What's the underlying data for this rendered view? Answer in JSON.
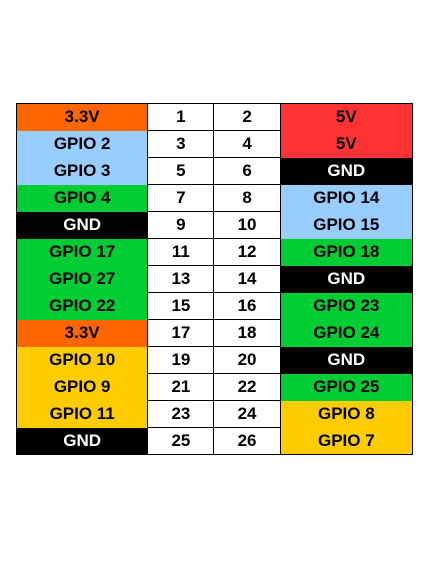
{
  "colors": {
    "orange": "#ff6600",
    "light_blue": "#99ccff",
    "green": "#00cc33",
    "black": "#000000",
    "red": "#ff3333",
    "yellow": "#ffcc00",
    "white": "#ffffff"
  },
  "rows": [
    {
      "left": {
        "label": "3.3V",
        "color": "orange",
        "text": "black"
      },
      "odd": "1",
      "even": "2",
      "right": {
        "label": "5V",
        "color": "red",
        "text": "black"
      }
    },
    {
      "left": {
        "label": "GPIO 2",
        "color": "light_blue",
        "text": "black"
      },
      "odd": "3",
      "even": "4",
      "right": {
        "label": "5V",
        "color": "red",
        "text": "black"
      }
    },
    {
      "left": {
        "label": "GPIO 3",
        "color": "light_blue",
        "text": "black"
      },
      "odd": "5",
      "even": "6",
      "right": {
        "label": "GND",
        "color": "black",
        "text": "white"
      }
    },
    {
      "left": {
        "label": "GPIO 4",
        "color": "green",
        "text": "black"
      },
      "odd": "7",
      "even": "8",
      "right": {
        "label": "GPIO 14",
        "color": "light_blue",
        "text": "black"
      }
    },
    {
      "left": {
        "label": "GND",
        "color": "black",
        "text": "white"
      },
      "odd": "9",
      "even": "10",
      "right": {
        "label": "GPIO 15",
        "color": "light_blue",
        "text": "black"
      }
    },
    {
      "left": {
        "label": "GPIO 17",
        "color": "green",
        "text": "black"
      },
      "odd": "11",
      "even": "12",
      "right": {
        "label": "GPIO 18",
        "color": "green",
        "text": "black"
      }
    },
    {
      "left": {
        "label": "GPIO 27",
        "color": "green",
        "text": "black"
      },
      "odd": "13",
      "even": "14",
      "right": {
        "label": "GND",
        "color": "black",
        "text": "white"
      }
    },
    {
      "left": {
        "label": "GPIO 22",
        "color": "green",
        "text": "black"
      },
      "odd": "15",
      "even": "16",
      "right": {
        "label": "GPIO 23",
        "color": "green",
        "text": "black"
      }
    },
    {
      "left": {
        "label": "3.3V",
        "color": "orange",
        "text": "black"
      },
      "odd": "17",
      "even": "18",
      "right": {
        "label": "GPIO 24",
        "color": "green",
        "text": "black"
      }
    },
    {
      "left": {
        "label": "GPIO 10",
        "color": "yellow",
        "text": "black"
      },
      "odd": "19",
      "even": "20",
      "right": {
        "label": "GND",
        "color": "black",
        "text": "white"
      }
    },
    {
      "left": {
        "label": "GPIO 9",
        "color": "yellow",
        "text": "black"
      },
      "odd": "21",
      "even": "22",
      "right": {
        "label": "GPIO 25",
        "color": "green",
        "text": "black"
      }
    },
    {
      "left": {
        "label": "GPIO 11",
        "color": "yellow",
        "text": "black"
      },
      "odd": "23",
      "even": "24",
      "right": {
        "label": "GPIO 8",
        "color": "yellow",
        "text": "black"
      }
    },
    {
      "left": {
        "label": "GND",
        "color": "black",
        "text": "white"
      },
      "odd": "25",
      "even": "26",
      "right": {
        "label": "GPIO 7",
        "color": "yellow",
        "text": "black"
      }
    }
  ]
}
